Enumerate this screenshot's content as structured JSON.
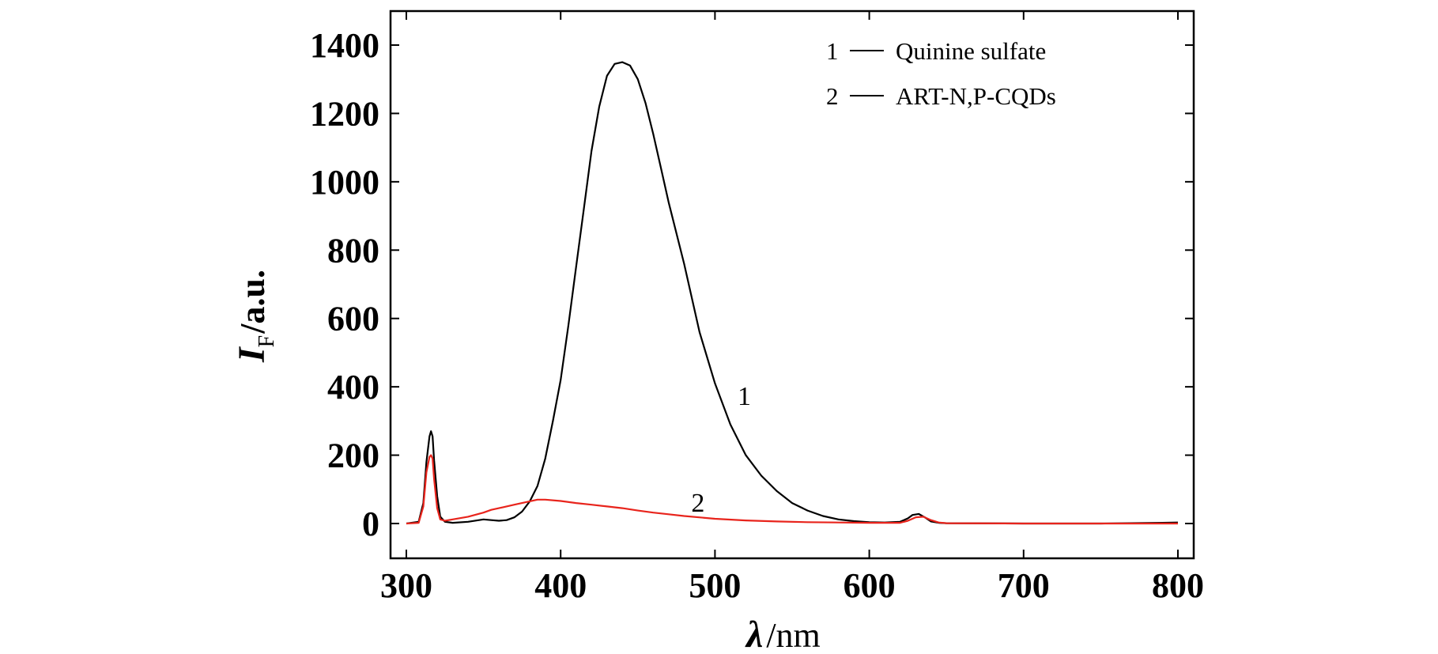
{
  "chart_data": {
    "type": "line",
    "xlabel": {
      "symbol": "λ",
      "unit": "/nm"
    },
    "ylabel": {
      "symbol": "I",
      "subscript": "F",
      "unit": "/a.u."
    },
    "xlim": [
      290,
      800
    ],
    "ylim": [
      -100,
      1500
    ],
    "xticks": [
      300,
      400,
      500,
      600,
      700,
      800
    ],
    "yticks": [
      0,
      200,
      400,
      600,
      800,
      1000,
      1200,
      1400
    ],
    "grid": false,
    "legend": {
      "placement": "top-right",
      "entries": [
        {
          "number": "1",
          "label": "Quinine sulfate"
        },
        {
          "number": "2",
          "label": "ART-N,P-CQDs"
        }
      ]
    },
    "series": [
      {
        "name": "Quinine sulfate",
        "number": "1",
        "color": "#000000",
        "x": [
          300,
          308,
          311,
          313,
          315,
          316,
          317,
          318,
          320,
          322,
          325,
          330,
          340,
          350,
          355,
          360,
          365,
          370,
          375,
          380,
          385,
          390,
          395,
          400,
          405,
          410,
          415,
          420,
          425,
          430,
          435,
          440,
          445,
          450,
          455,
          460,
          465,
          470,
          480,
          490,
          500,
          510,
          520,
          530,
          540,
          550,
          560,
          570,
          580,
          590,
          600,
          610,
          620,
          625,
          628,
          632,
          636,
          640,
          645,
          650,
          700,
          750,
          790,
          800
        ],
        "y": [
          0,
          5,
          60,
          180,
          255,
          270,
          255,
          185,
          80,
          20,
          5,
          2,
          5,
          12,
          10,
          8,
          10,
          18,
          35,
          65,
          110,
          190,
          300,
          420,
          580,
          750,
          920,
          1090,
          1220,
          1310,
          1345,
          1350,
          1340,
          1300,
          1230,
          1140,
          1040,
          940,
          760,
          560,
          410,
          290,
          200,
          140,
          95,
          60,
          38,
          22,
          12,
          7,
          4,
          3,
          5,
          15,
          25,
          28,
          18,
          6,
          2,
          1,
          0,
          0,
          2,
          3
        ]
      },
      {
        "name": "ART-N,P-CQDs",
        "number": "2",
        "color": "#e8241c",
        "x": [
          300,
          308,
          311,
          313,
          315,
          316,
          317,
          318,
          320,
          322,
          325,
          330,
          340,
          350,
          355,
          360,
          370,
          380,
          385,
          390,
          400,
          410,
          420,
          430,
          440,
          450,
          460,
          470,
          480,
          500,
          520,
          540,
          560,
          580,
          600,
          620,
          625,
          630,
          635,
          640,
          645,
          650,
          700,
          750,
          800
        ],
        "y": [
          0,
          2,
          50,
          150,
          195,
          200,
          190,
          130,
          45,
          12,
          8,
          12,
          20,
          32,
          40,
          45,
          55,
          65,
          70,
          70,
          66,
          60,
          55,
          50,
          45,
          38,
          32,
          27,
          22,
          14,
          9,
          6,
          4,
          3,
          2,
          2,
          8,
          18,
          20,
          10,
          3,
          1,
          0,
          0,
          0
        ]
      }
    ],
    "annotations": [
      {
        "text": "1",
        "series": "Quinine sulfate",
        "x": 519,
        "y": 375
      },
      {
        "text": "2",
        "series": "ART-N,P-CQDs",
        "x": 489,
        "y": 62
      }
    ]
  }
}
